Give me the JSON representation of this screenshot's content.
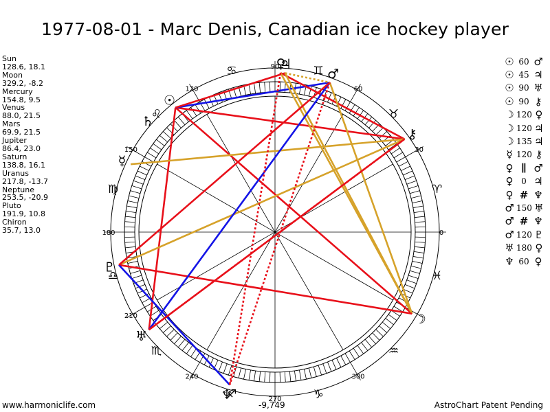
{
  "title": "1977-08-01 - Marc Denis, Canadian ice hockey player",
  "planets": [
    {
      "name": "Sun",
      "coords": "128.6, 18.1",
      "lon": 128.6,
      "glyph": "☉"
    },
    {
      "name": "Moon",
      "coords": "329.2, -8.2",
      "lon": 329.2,
      "glyph": "☽"
    },
    {
      "name": "Mercury",
      "coords": "154.8, 9.5",
      "lon": 154.8,
      "glyph": "☿"
    },
    {
      "name": "Venus",
      "coords": "88.0, 21.5",
      "lon": 88.0,
      "glyph": "♀"
    },
    {
      "name": "Mars",
      "coords": "69.9, 21.5",
      "lon": 69.9,
      "glyph": "♂"
    },
    {
      "name": "Jupiter",
      "coords": "86.4, 23.0",
      "lon": 86.4,
      "glyph": "♃"
    },
    {
      "name": "Saturn",
      "coords": "138.8, 16.1",
      "lon": 138.8,
      "glyph": "♄"
    },
    {
      "name": "Uranus",
      "coords": "217.8, -13.7",
      "lon": 217.8,
      "glyph": "♅"
    },
    {
      "name": "Neptune",
      "coords": "253.5, -20.9",
      "lon": 253.5,
      "glyph": "♆"
    },
    {
      "name": "Pluto",
      "coords": "191.9, 10.8",
      "lon": 191.9,
      "glyph": "♇"
    },
    {
      "name": "Chiron",
      "coords": "35.7, 13.0",
      "lon": 35.7,
      "glyph": "⚷"
    }
  ],
  "degree_labels": [
    "0",
    "30",
    "60",
    "90",
    "120",
    "150",
    "180",
    "210",
    "240",
    "270",
    "300"
  ],
  "zodiac_glyphs": [
    "♈",
    "♉",
    "♊",
    "♋",
    "♌",
    "♍",
    "♎",
    "♏",
    "♐",
    "♑",
    "♒",
    "♓"
  ],
  "aspects": [
    {
      "p1": "☉",
      "angle": "60",
      "p2": "♂"
    },
    {
      "p1": "☉",
      "angle": "45",
      "p2": "♃"
    },
    {
      "p1": "☉",
      "angle": "90",
      "p2": "♅"
    },
    {
      "p1": "☉",
      "angle": "90",
      "p2": "⚷"
    },
    {
      "p1": "☽",
      "angle": "120",
      "p2": "♀"
    },
    {
      "p1": "☽",
      "angle": "120",
      "p2": "♃"
    },
    {
      "p1": "☽",
      "angle": "135",
      "p2": "♃"
    },
    {
      "p1": "☿",
      "angle": "120",
      "p2": "⚷"
    },
    {
      "p1": "♀",
      "angle": "∥",
      "p2": "♂"
    },
    {
      "p1": "♀",
      "angle": "0",
      "p2": "♃"
    },
    {
      "p1": "♀",
      "angle": "#",
      "p2": "♆"
    },
    {
      "p1": "♂",
      "angle": "150",
      "p2": "♅"
    },
    {
      "p1": "♂",
      "angle": "#",
      "p2": "♆"
    },
    {
      "p1": "♂",
      "angle": "120",
      "p2": "♇"
    },
    {
      "p1": "♅",
      "angle": "180",
      "p2": "♀"
    },
    {
      "p1": "♆",
      "angle": "60",
      "p2": "♀"
    }
  ],
  "colors": {
    "red": "#e8101a",
    "blue": "#1414e6",
    "gold": "#d6a22a"
  },
  "footer": {
    "left": "www.harmoniclife.com",
    "center": "-9,749",
    "right": "AstroChart Patent Pending"
  }
}
